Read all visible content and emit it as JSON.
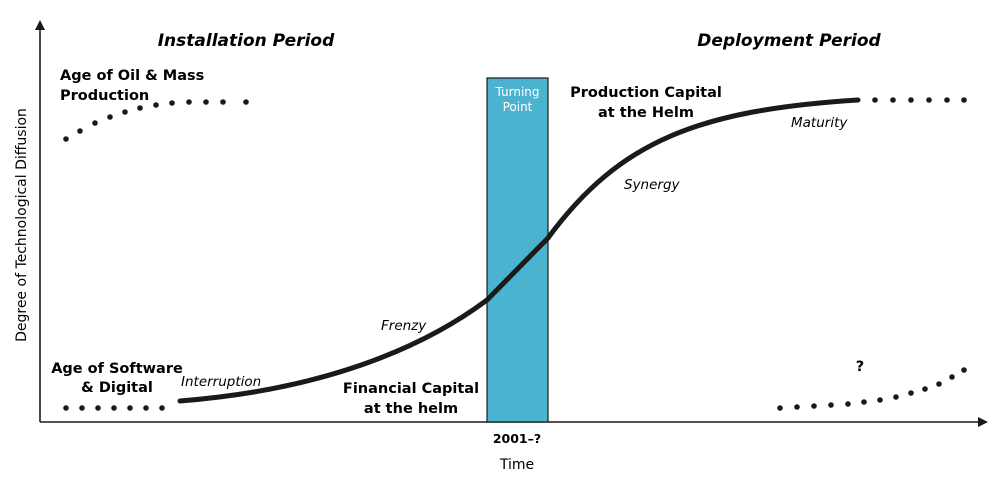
{
  "axes": {
    "y_label": "Degree of Technological Diffusion",
    "x_label": "Time",
    "x_marker": "2001–?"
  },
  "periods": {
    "installation": "Installation Period",
    "deployment": "Deployment Period"
  },
  "turning_point": {
    "line1": "Turning",
    "line2": "Point",
    "color": "#4bb3cf"
  },
  "ages": {
    "oil_line1": "Age of Oil & Mass",
    "oil_line2": "Production",
    "software_line1": "Age of Software",
    "software_line2": "& Digital",
    "next": "?"
  },
  "phases": {
    "interruption": "Interruption",
    "frenzy": "Frenzy",
    "synergy": "Synergy",
    "maturity": "Maturity"
  },
  "captions": {
    "financial_line1": "Financial Capital",
    "financial_line2": "at the helm",
    "production_line1": "Production Capital",
    "production_line2": "at the Helm"
  }
}
